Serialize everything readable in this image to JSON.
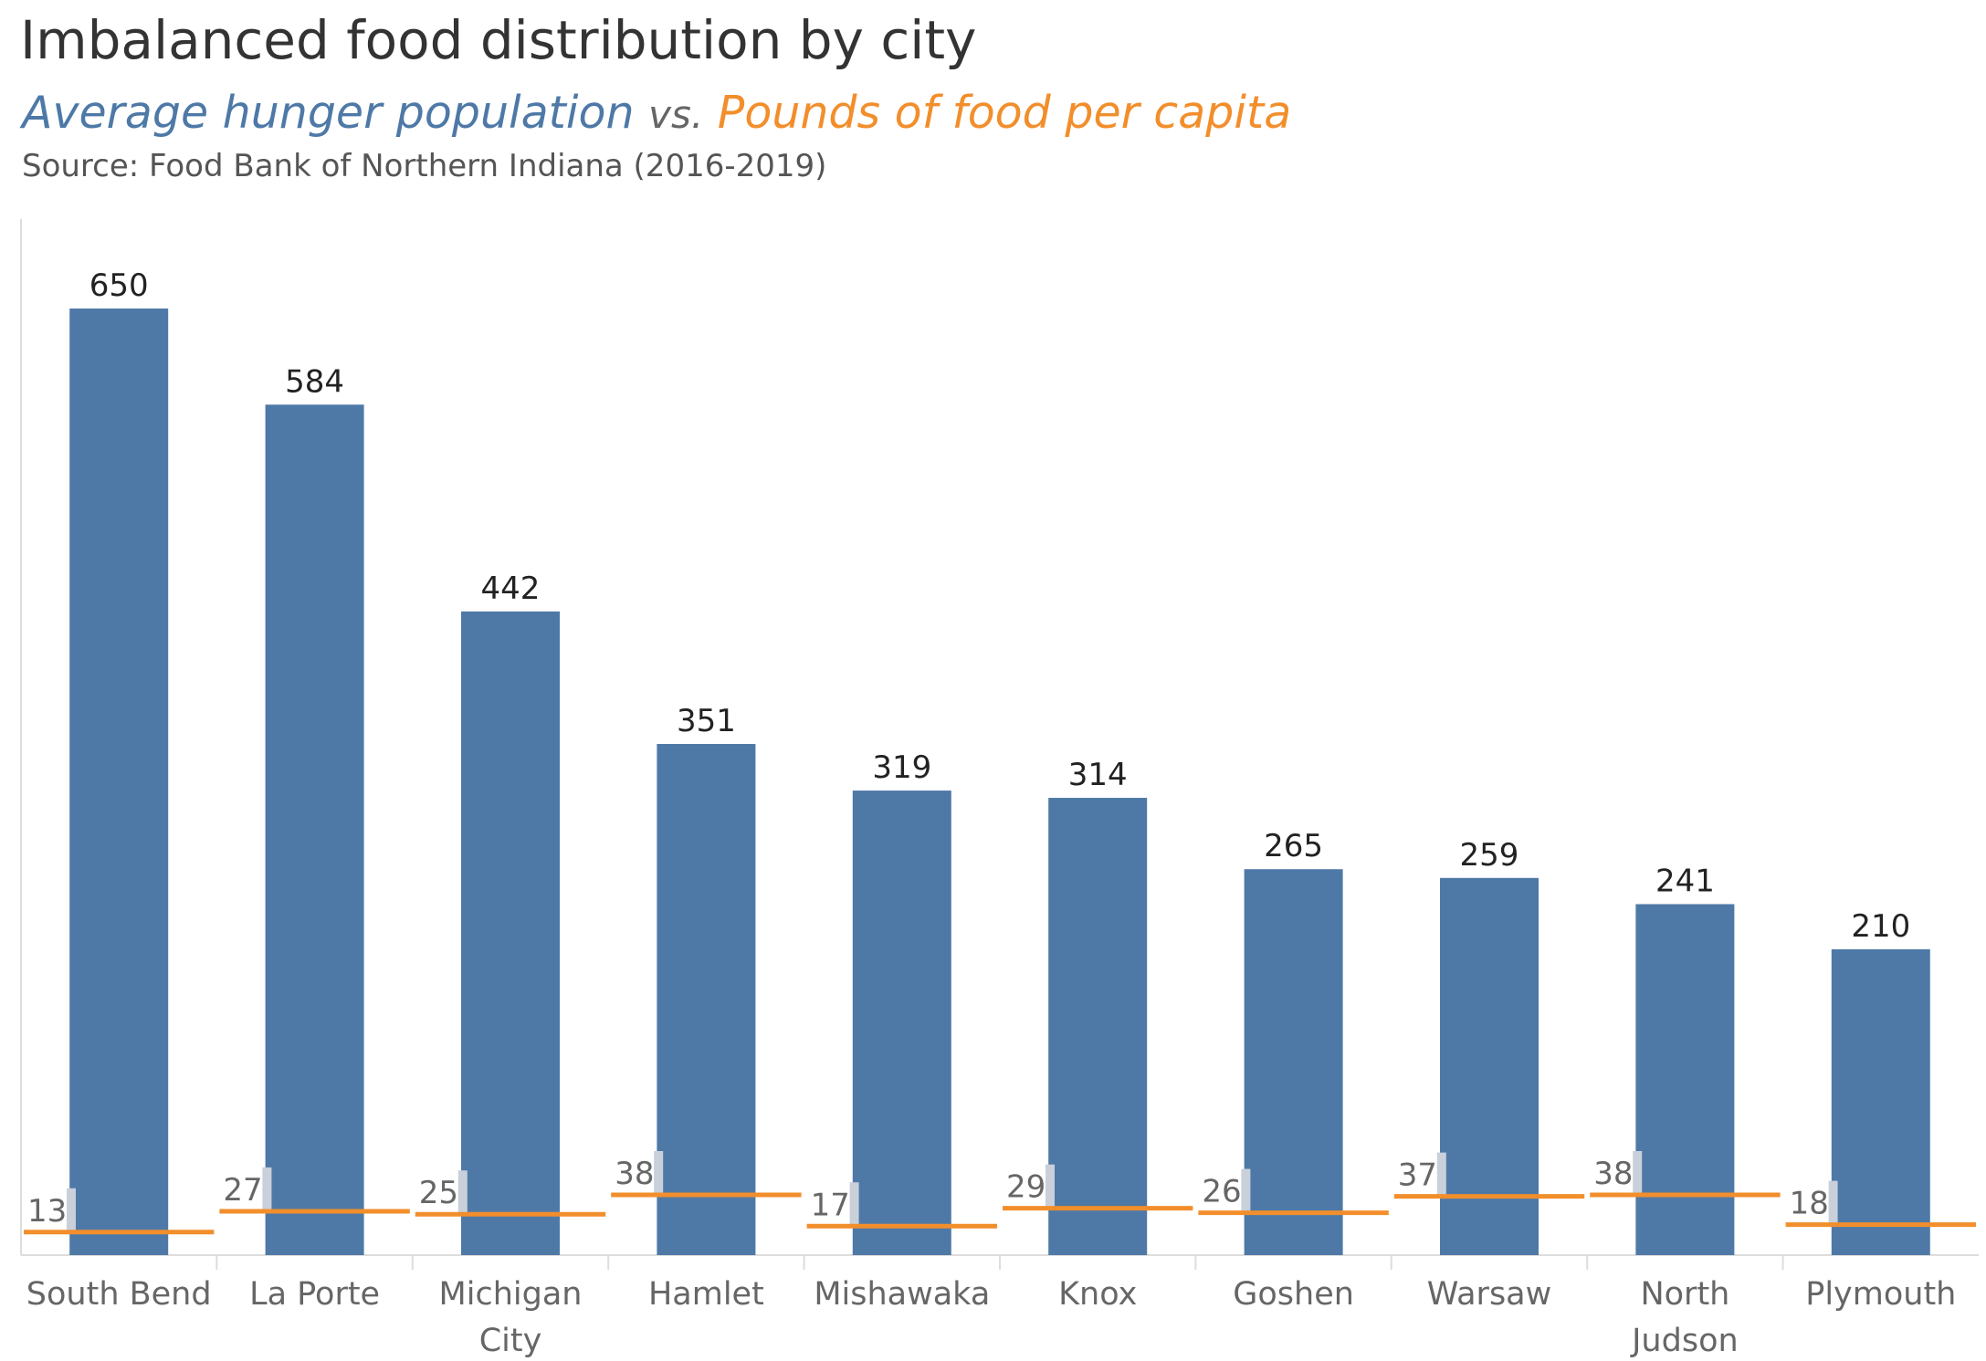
{
  "header": {
    "title": "Imbalanced food distribution by city",
    "subtitle_series1": "Average hunger population",
    "subtitle_vs": "vs.",
    "subtitle_series2": "Pounds of food per capita",
    "source": "Source: Food Bank of Northern Indiana (2016-2019)"
  },
  "colors": {
    "bar": "#4e79a7",
    "line": "#f28e2b",
    "small_bar": "#c9d0da",
    "axis": "#dddddd",
    "label": "#222222",
    "tick_label": "#666666"
  },
  "chart_data": {
    "type": "bar",
    "categories": [
      [
        "South Bend"
      ],
      [
        "La Porte"
      ],
      [
        "Michigan",
        "City"
      ],
      [
        "Hamlet"
      ],
      [
        "Mishawaka"
      ],
      [
        "Knox"
      ],
      [
        "Goshen"
      ],
      [
        "Warsaw"
      ],
      [
        "North",
        "Judson"
      ],
      [
        "Plymouth"
      ]
    ],
    "series": [
      {
        "name": "Average hunger population",
        "mark": "bar",
        "values": [
          650,
          584,
          442,
          351,
          319,
          314,
          265,
          259,
          241,
          210
        ]
      },
      {
        "name": "Pounds of food per capita",
        "mark": "reference-line",
        "values": [
          13,
          27,
          25,
          38,
          17,
          29,
          26,
          37,
          38,
          18
        ]
      }
    ],
    "ylim": [
      0,
      720
    ],
    "grid": false,
    "legend": "none"
  }
}
